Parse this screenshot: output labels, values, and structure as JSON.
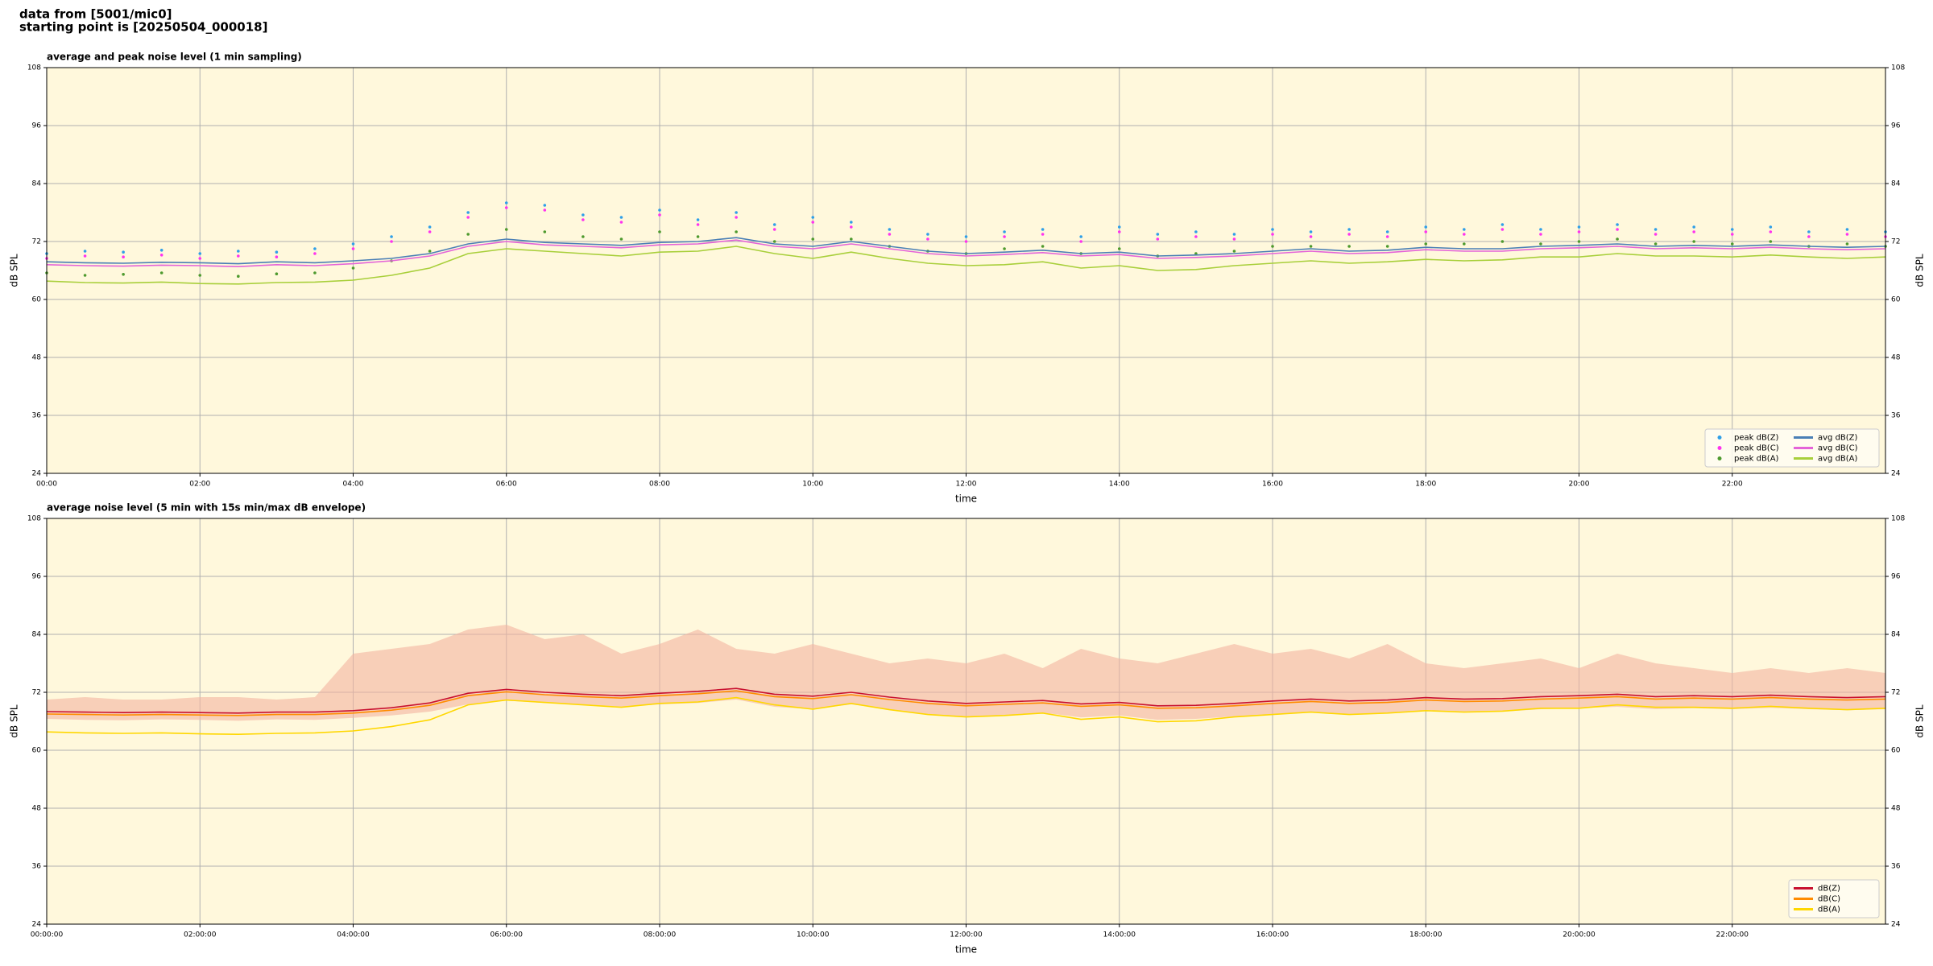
{
  "header": {
    "lines": [
      "data from [5001/mic0]",
      "starting point is [20250504_000018]"
    ]
  },
  "chart_data": [
    {
      "type": "line",
      "title": "average and peak noise level (1 min sampling)",
      "xlabel": "time",
      "ylabel": "dB SPL",
      "xlim": [
        0,
        24
      ],
      "ylim": [
        24,
        108
      ],
      "yticks": [
        24,
        36,
        48,
        60,
        72,
        84,
        96,
        108
      ],
      "xticks": [
        {
          "value": 0,
          "label": "00:00"
        },
        {
          "value": 2,
          "label": "02:00"
        },
        {
          "value": 4,
          "label": "04:00"
        },
        {
          "value": 6,
          "label": "06:00"
        },
        {
          "value": 8,
          "label": "08:00"
        },
        {
          "value": 10,
          "label": "10:00"
        },
        {
          "value": 12,
          "label": "12:00"
        },
        {
          "value": 14,
          "label": "14:00"
        },
        {
          "value": 16,
          "label": "16:00"
        },
        {
          "value": 18,
          "label": "18:00"
        },
        {
          "value": 20,
          "label": "20:00"
        },
        {
          "value": 22,
          "label": "22:00"
        }
      ],
      "grid": true,
      "legend": "lower right",
      "legend_columns": 2,
      "background": "#fff8dc",
      "x": [
        0,
        0.5,
        1,
        1.5,
        2,
        2.5,
        3,
        3.5,
        4,
        4.5,
        5,
        5.5,
        6,
        6.5,
        7,
        7.5,
        8,
        8.5,
        9,
        9.5,
        10,
        10.5,
        11,
        11.5,
        12,
        12.5,
        13,
        13.5,
        14,
        14.5,
        15,
        15.5,
        16,
        16.5,
        17,
        17.5,
        18,
        18.5,
        19,
        19.5,
        20,
        20.5,
        21,
        21.5,
        22,
        22.5,
        23,
        23.5,
        24
      ],
      "series": [
        {
          "name": "peak dB(Z)",
          "color": "#2f9fe8",
          "mode": "markers",
          "values": [
            69.5,
            70.0,
            69.8,
            70.2,
            69.5,
            70.0,
            69.8,
            70.5,
            71.5,
            73.0,
            75.0,
            78.0,
            80.0,
            79.5,
            77.5,
            77.0,
            78.5,
            76.5,
            78.0,
            75.5,
            77.0,
            76.0,
            74.5,
            73.5,
            73.0,
            74.0,
            74.5,
            73.0,
            75.0,
            73.5,
            74.0,
            73.5,
            74.5,
            74.0,
            74.5,
            74.0,
            75.0,
            74.5,
            75.5,
            74.5,
            75.0,
            75.5,
            74.5,
            75.0,
            74.5,
            75.0,
            74.0,
            74.5,
            74.0
          ]
        },
        {
          "name": "peak dB(C)",
          "color": "#ff33ee",
          "mode": "markers",
          "values": [
            68.5,
            69.0,
            68.8,
            69.2,
            68.5,
            69.0,
            68.8,
            69.5,
            70.5,
            72.0,
            74.0,
            77.0,
            79.0,
            78.5,
            76.5,
            76.0,
            77.5,
            75.5,
            77.0,
            74.5,
            76.0,
            75.0,
            73.5,
            72.5,
            72.0,
            73.0,
            73.5,
            72.0,
            74.0,
            72.5,
            73.0,
            72.5,
            73.5,
            73.0,
            73.5,
            73.0,
            74.0,
            73.5,
            74.5,
            73.5,
            74.0,
            74.5,
            73.5,
            74.0,
            73.5,
            74.0,
            73.0,
            73.5,
            73.0
          ]
        },
        {
          "name": "peak dB(A)",
          "color": "#4e9a2e",
          "mode": "markers",
          "values": [
            65.5,
            65.0,
            65.2,
            65.5,
            65.0,
            64.8,
            65.3,
            65.5,
            66.5,
            68.0,
            70.0,
            73.5,
            74.5,
            74.0,
            73.0,
            72.5,
            74.0,
            73.0,
            74.0,
            72.0,
            72.5,
            72.5,
            71.0,
            70.0,
            69.5,
            70.5,
            71.0,
            69.5,
            70.5,
            69.0,
            69.5,
            70.0,
            71.0,
            71.0,
            71.0,
            71.0,
            71.5,
            71.5,
            72.0,
            71.5,
            72.0,
            72.5,
            71.5,
            72.0,
            71.5,
            72.0,
            71.0,
            71.5,
            71.0
          ]
        },
        {
          "name": "avg dB(Z)",
          "color": "#4a7fb5",
          "mode": "lines",
          "values": [
            67.8,
            67.6,
            67.5,
            67.7,
            67.6,
            67.4,
            67.8,
            67.6,
            68.0,
            68.5,
            69.5,
            71.5,
            72.5,
            71.8,
            71.5,
            71.2,
            71.8,
            72.0,
            72.8,
            71.5,
            71.0,
            72.0,
            71.0,
            70.0,
            69.5,
            69.8,
            70.2,
            69.5,
            69.8,
            69.0,
            69.2,
            69.5,
            70.0,
            70.5,
            70.0,
            70.2,
            70.8,
            70.5,
            70.5,
            71.0,
            71.2,
            71.5,
            71.0,
            71.2,
            71.0,
            71.3,
            71.0,
            70.8,
            71.0
          ]
        },
        {
          "name": "avg dB(C)",
          "color": "#e463d8",
          "mode": "lines",
          "values": [
            67.2,
            67.0,
            66.9,
            67.1,
            67.0,
            66.8,
            67.2,
            67.0,
            67.4,
            68.0,
            69.0,
            71.0,
            72.0,
            71.3,
            71.0,
            70.7,
            71.3,
            71.5,
            72.3,
            71.0,
            70.5,
            71.5,
            70.5,
            69.5,
            69.0,
            69.3,
            69.7,
            69.0,
            69.3,
            68.5,
            68.7,
            69.0,
            69.5,
            70.0,
            69.5,
            69.7,
            70.3,
            70.0,
            70.0,
            70.5,
            70.7,
            71.0,
            70.5,
            70.7,
            70.5,
            70.8,
            70.5,
            70.3,
            70.5
          ]
        },
        {
          "name": "avg dB(A)",
          "color": "#a8cf3a",
          "mode": "lines",
          "values": [
            63.8,
            63.5,
            63.4,
            63.6,
            63.3,
            63.2,
            63.5,
            63.6,
            64.0,
            65.0,
            66.5,
            69.5,
            70.5,
            70.0,
            69.5,
            69.0,
            69.8,
            70.0,
            71.0,
            69.5,
            68.5,
            69.8,
            68.5,
            67.5,
            67.0,
            67.2,
            67.8,
            66.5,
            67.0,
            66.0,
            66.2,
            67.0,
            67.5,
            68.0,
            67.5,
            67.8,
            68.3,
            68.0,
            68.2,
            68.8,
            68.8,
            69.5,
            69.0,
            69.0,
            68.8,
            69.2,
            68.8,
            68.5,
            68.8
          ]
        }
      ]
    },
    {
      "type": "line",
      "title": "average noise level (5 min with 15s min/max dB envelope)",
      "xlabel": "time",
      "ylabel": "dB SPL",
      "xlim": [
        0,
        24
      ],
      "ylim": [
        24,
        108
      ],
      "yticks": [
        24,
        36,
        48,
        60,
        72,
        84,
        96,
        108
      ],
      "xticks": [
        {
          "value": 0,
          "label": "00:00:00"
        },
        {
          "value": 2,
          "label": "02:00:00"
        },
        {
          "value": 4,
          "label": "04:00:00"
        },
        {
          "value": 6,
          "label": "06:00:00"
        },
        {
          "value": 8,
          "label": "08:00:00"
        },
        {
          "value": 10,
          "label": "10:00:00"
        },
        {
          "value": 12,
          "label": "12:00:00"
        },
        {
          "value": 14,
          "label": "14:00:00"
        },
        {
          "value": 16,
          "label": "16:00:00"
        },
        {
          "value": 18,
          "label": "18:00:00"
        },
        {
          "value": 20,
          "label": "20:00:00"
        },
        {
          "value": 22,
          "label": "22:00:00"
        }
      ],
      "grid": true,
      "legend": "lower right",
      "legend_columns": 1,
      "background": "#fff8dc",
      "x": [
        0,
        0.5,
        1,
        1.5,
        2,
        2.5,
        3,
        3.5,
        4,
        4.5,
        5,
        5.5,
        6,
        6.5,
        7,
        7.5,
        8,
        8.5,
        9,
        9.5,
        10,
        10.5,
        11,
        11.5,
        12,
        12.5,
        13,
        13.5,
        14,
        14.5,
        15,
        15.5,
        16,
        16.5,
        17,
        17.5,
        18,
        18.5,
        19,
        19.5,
        20,
        20.5,
        21,
        21.5,
        22,
        22.5,
        23,
        23.5,
        24
      ],
      "envelope": {
        "color": "#f4b4a0",
        "upper": [
          70.5,
          71.0,
          70.5,
          70.5,
          71.0,
          71.0,
          70.5,
          71.0,
          80.0,
          81.0,
          82.0,
          85.0,
          86.0,
          83.0,
          84.0,
          80.0,
          82.0,
          85.0,
          81.0,
          80.0,
          82.0,
          80.0,
          78.0,
          79.0,
          78.0,
          80.0,
          77.0,
          81.0,
          79.0,
          78.0,
          80.0,
          82.0,
          80.0,
          81.0,
          79.0,
          82.0,
          78.0,
          77.0,
          78.0,
          79.0,
          77.0,
          80.0,
          78.0,
          77.0,
          76.0,
          77.0,
          76.0,
          77.0,
          76.0
        ],
        "lower": [
          66.5,
          66.3,
          66.2,
          66.4,
          66.3,
          66.1,
          66.4,
          66.3,
          66.7,
          67.2,
          68.0,
          69.5,
          70.3,
          69.8,
          69.5,
          69.0,
          69.5,
          69.8,
          70.5,
          69.0,
          68.5,
          69.5,
          68.5,
          67.5,
          67.0,
          67.3,
          67.8,
          66.8,
          67.2,
          66.3,
          66.5,
          67.0,
          67.5,
          68.0,
          67.5,
          67.8,
          68.3,
          68.0,
          68.0,
          68.5,
          68.7,
          69.0,
          68.5,
          68.7,
          68.5,
          68.8,
          68.5,
          68.3,
          68.5
        ]
      },
      "series": [
        {
          "name": "dB(Z)",
          "color": "#c8102e",
          "mode": "lines",
          "values": [
            68.0,
            67.9,
            67.8,
            67.9,
            67.8,
            67.7,
            67.9,
            67.9,
            68.2,
            68.8,
            69.8,
            71.8,
            72.6,
            72.0,
            71.6,
            71.3,
            71.8,
            72.2,
            72.8,
            71.6,
            71.2,
            72.0,
            71.0,
            70.2,
            69.7,
            70.0,
            70.3,
            69.6,
            69.9,
            69.2,
            69.3,
            69.7,
            70.2,
            70.6,
            70.2,
            70.4,
            70.9,
            70.6,
            70.7,
            71.1,
            71.3,
            71.6,
            71.1,
            71.3,
            71.1,
            71.4,
            71.1,
            70.9,
            71.1
          ]
        },
        {
          "name": "dB(C)",
          "color": "#ff8c00",
          "mode": "lines",
          "values": [
            67.5,
            67.4,
            67.3,
            67.4,
            67.3,
            67.2,
            67.4,
            67.4,
            67.7,
            68.3,
            69.3,
            71.3,
            72.1,
            71.5,
            71.1,
            70.8,
            71.3,
            71.7,
            72.3,
            71.1,
            70.7,
            71.5,
            70.5,
            69.7,
            69.2,
            69.5,
            69.8,
            69.1,
            69.4,
            68.7,
            68.8,
            69.2,
            69.7,
            70.1,
            69.7,
            69.9,
            70.4,
            70.1,
            70.2,
            70.6,
            70.8,
            71.1,
            70.6,
            70.8,
            70.6,
            70.9,
            70.6,
            70.4,
            70.6
          ]
        },
        {
          "name": "dB(A)",
          "color": "#ffd700",
          "mode": "lines",
          "values": [
            63.8,
            63.6,
            63.5,
            63.6,
            63.4,
            63.3,
            63.5,
            63.6,
            64.0,
            64.9,
            66.3,
            69.4,
            70.4,
            69.9,
            69.4,
            68.9,
            69.7,
            70.0,
            70.9,
            69.4,
            68.5,
            69.7,
            68.4,
            67.4,
            66.9,
            67.2,
            67.7,
            66.4,
            66.9,
            65.9,
            66.1,
            66.9,
            67.4,
            67.9,
            67.4,
            67.7,
            68.2,
            67.9,
            68.1,
            68.7,
            68.7,
            69.4,
            68.9,
            68.9,
            68.7,
            69.1,
            68.7,
            68.4,
            68.7
          ]
        }
      ]
    }
  ]
}
